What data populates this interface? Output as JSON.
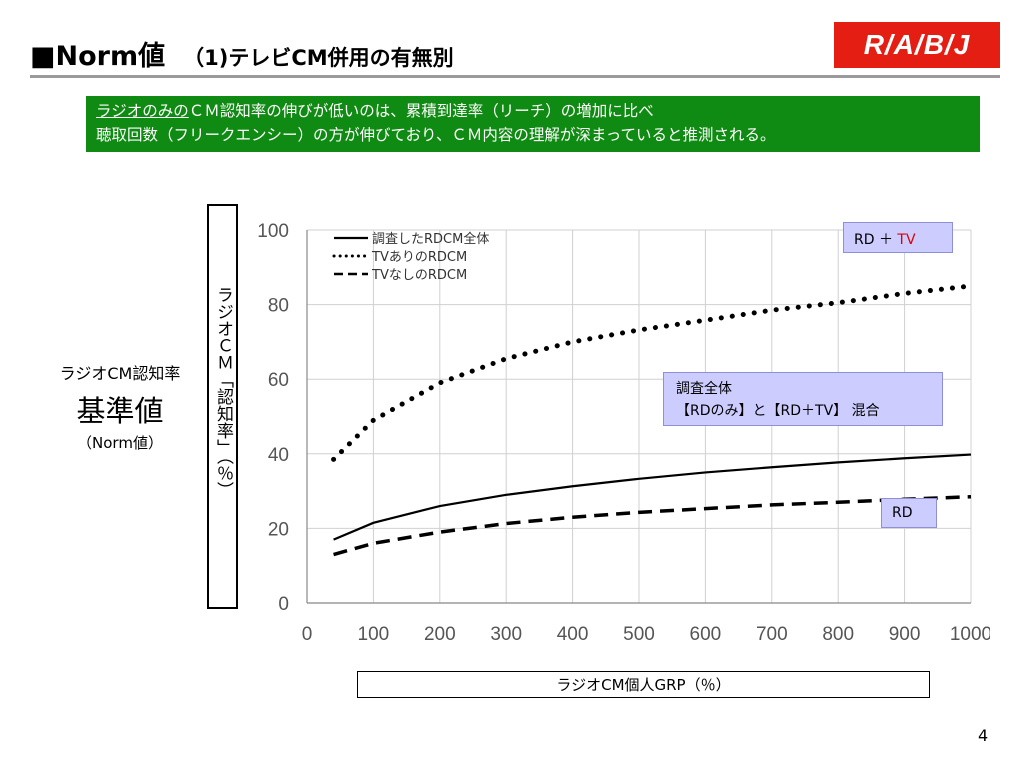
{
  "slide": {
    "title": "■Norm値",
    "subtitle": "（1)テレビCM併用の有無別",
    "logo_text": "R/A/B/J",
    "banner": {
      "line1_underlined": "ラジオのみの",
      "line1_rest": "ＣＭ認知率の伸びが低いのは、累積到達率（リーチ）の増加に比べ",
      "line2": "聴取回数（フリークエンシー）の方が伸びており、ＣＭ内容の理解が深まっていると推測される。"
    },
    "left_label": {
      "line1": "ラジオCM認知率",
      "line2": "基準値",
      "line3": "（Norm値）"
    },
    "y_axis_box": "ラジオＣＭ「認知率」（％）",
    "x_axis_box": "ラジオCM個人GRP（％）",
    "tags": {
      "rd_tv_prefix": "RD ＋ ",
      "rd_tv_red": "TV",
      "all_line1": "調査全体",
      "all_line2": "【RDのみ】と【RD＋TV】 混合",
      "rd": "RD"
    },
    "page_number": "4"
  },
  "colors": {
    "logo_bg": "#e41e13",
    "banner_bg": "#0f8a12",
    "tag_bg": "#ccccff",
    "tag_red": "#e00000"
  },
  "chart_data": {
    "type": "line",
    "x_ticks": [
      "0",
      "100",
      "200",
      "300",
      "400",
      "500",
      "600",
      "700",
      "800",
      "900",
      "1000"
    ],
    "y_ticks": [
      "0",
      "20",
      "40",
      "60",
      "80",
      "100"
    ],
    "xlim": [
      0,
      1000
    ],
    "ylim": [
      0,
      100
    ],
    "grid": true,
    "legend_position": "top-left",
    "series": [
      {
        "name": "調査したRDCM全体",
        "style": "solid",
        "x": [
          40,
          100,
          200,
          300,
          400,
          500,
          600,
          700,
          800,
          900,
          1000
        ],
        "values": [
          17,
          21.5,
          26,
          29,
          31.3,
          33.3,
          35,
          36.4,
          37.7,
          38.8,
          39.8
        ]
      },
      {
        "name": "TVありのRDCM",
        "style": "dotted",
        "x": [
          40,
          100,
          200,
          300,
          400,
          500,
          600,
          700,
          800,
          900,
          1000
        ],
        "values": [
          38.5,
          49,
          59,
          65.5,
          70,
          73.2,
          75.8,
          78.5,
          80.5,
          83,
          85
        ]
      },
      {
        "name": "TVなしのRDCM",
        "style": "dashed",
        "x": [
          40,
          100,
          200,
          300,
          400,
          500,
          600,
          700,
          800,
          900,
          1000
        ],
        "values": [
          13,
          16,
          19,
          21.3,
          23,
          24.3,
          25.3,
          26.3,
          27,
          27.8,
          28.5
        ]
      }
    ]
  }
}
